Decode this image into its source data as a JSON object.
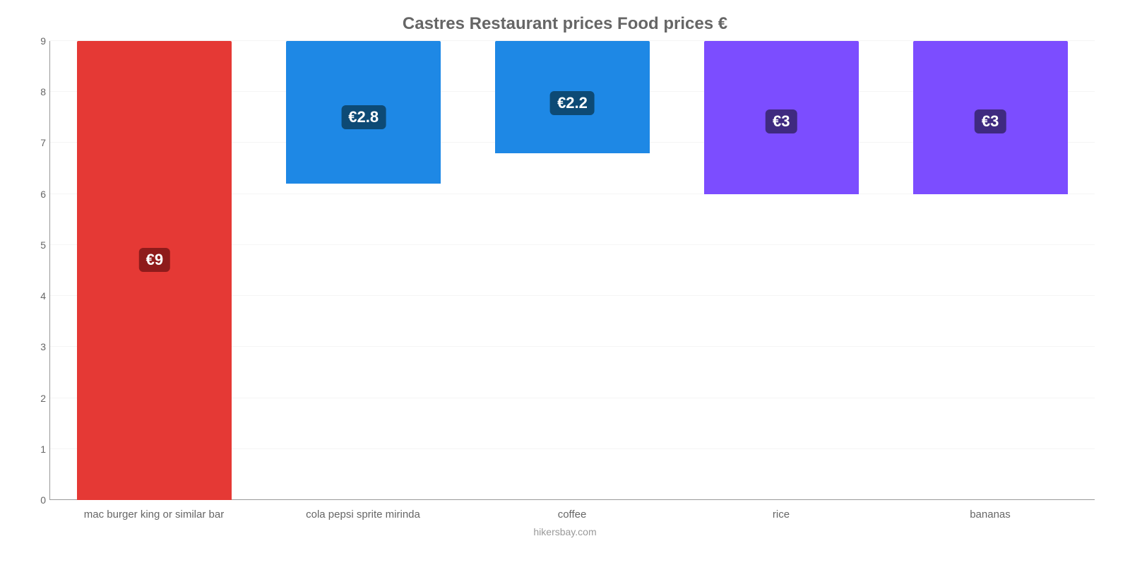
{
  "chart": {
    "type": "bar",
    "title": "Castres Restaurant prices Food prices €",
    "title_fontsize": 24,
    "title_color": "#666666",
    "background_color": "#ffffff",
    "grid_color": "#f5f5f5",
    "axis_color": "#999999",
    "ylim": [
      0,
      9
    ],
    "ytick_step": 1,
    "yticks": [
      0,
      1,
      2,
      3,
      4,
      5,
      6,
      7,
      8,
      9
    ],
    "ytick_fontsize": 14,
    "ytick_color": "#666666",
    "xlabel_fontsize": 15,
    "xlabel_color": "#666666",
    "bar_width_pct": 74,
    "value_badge_fontsize": 22,
    "value_badge_radius": 6,
    "categories": [
      "mac burger king or similar bar",
      "cola pepsi sprite mirinda",
      "coffee",
      "rice",
      "bananas"
    ],
    "values": [
      9,
      2.8,
      2.2,
      3,
      3
    ],
    "value_labels": [
      "€9",
      "€2.8",
      "€2.2",
      "€3",
      "€3"
    ],
    "bar_colors": [
      "#e53935",
      "#1e88e5",
      "#1e88e5",
      "#7c4dff",
      "#7c4dff"
    ],
    "badge_colors": [
      "#8e1b1b",
      "#0d4a75",
      "#0d4a75",
      "#3f2a80",
      "#3f2a80"
    ],
    "attribution": "hikersbay.com",
    "attribution_fontsize": 14,
    "attribution_color": "#999999"
  }
}
